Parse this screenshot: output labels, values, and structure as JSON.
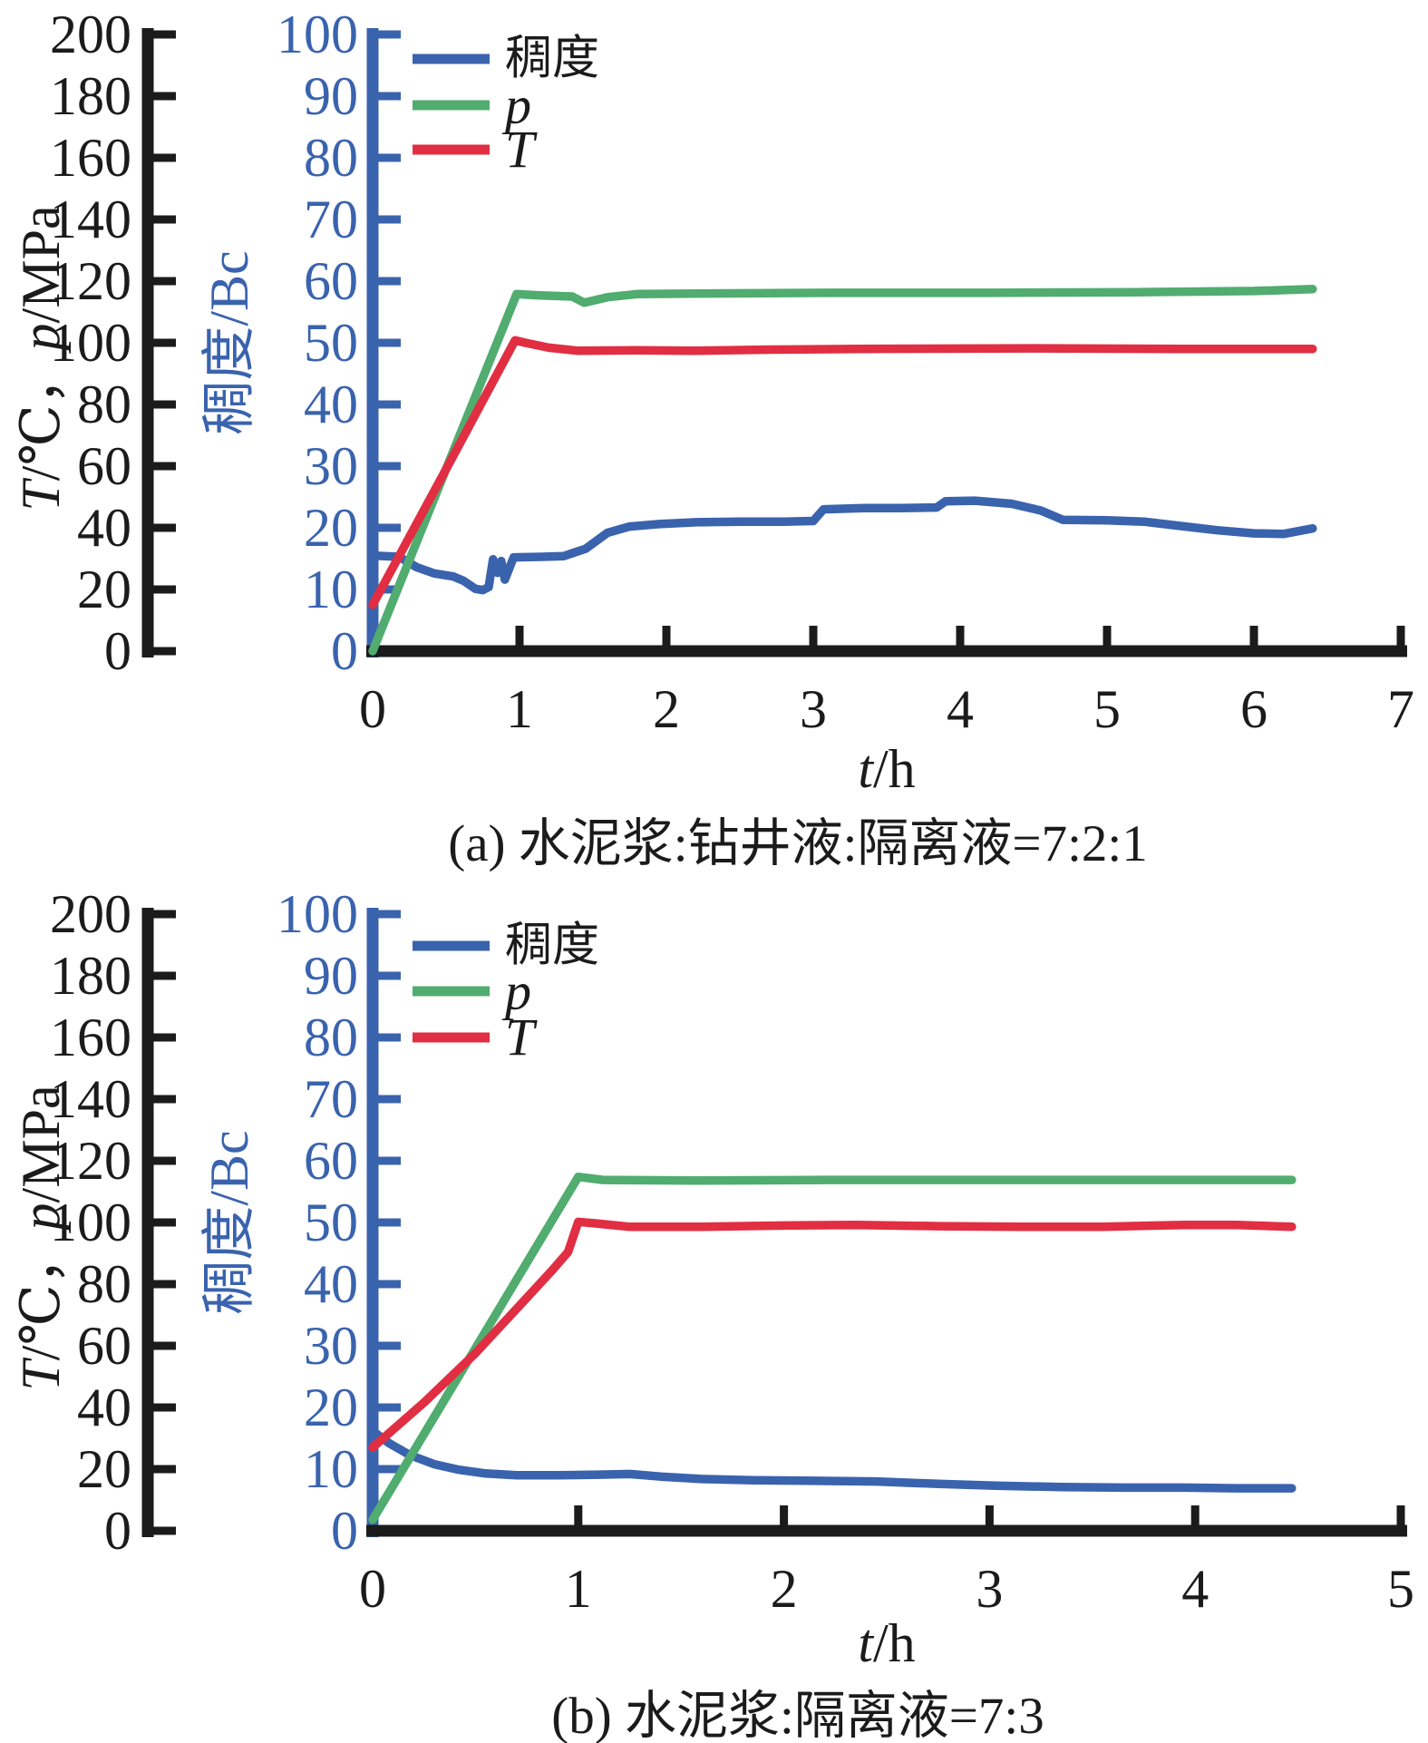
{
  "colors": {
    "consistency": "#3A63AE",
    "pressure": "#50AC6F",
    "temperature": "#E12E42",
    "axis_black": "#1b1b1b",
    "axis_blue": "#3A63AE",
    "background": "#ffffff"
  },
  "chart_data": [
    {
      "type": "line",
      "caption": "(a) 水泥浆:钻井液:隔离液=7:2:1",
      "x_axis": {
        "label_italic": "t",
        "label_rest": "/h",
        "min": 0,
        "max": 7,
        "ticks": [
          0,
          1,
          2,
          3,
          4,
          5,
          6,
          7
        ]
      },
      "left_axis": {
        "label_segments": [
          [
            "T",
            true
          ],
          [
            "/℃，",
            false
          ],
          [
            "p",
            true
          ],
          [
            "/MPa",
            false
          ]
        ],
        "min": 0,
        "max": 200,
        "ticks": [
          0,
          20,
          40,
          60,
          80,
          100,
          120,
          140,
          160,
          180,
          200
        ]
      },
      "right_inner_axis": {
        "label": "稠度/Bc",
        "min": 0,
        "max": 100,
        "ticks": [
          0,
          10,
          20,
          30,
          40,
          50,
          60,
          70,
          80,
          90,
          100
        ]
      },
      "legend": [
        {
          "label": "稠度",
          "italic": false,
          "series": "consistency"
        },
        {
          "label": "p",
          "italic": true,
          "series": "pressure"
        },
        {
          "label": "T",
          "italic": true,
          "series": "temperature"
        }
      ],
      "series": [
        {
          "key": "consistency",
          "name": "稠度",
          "axis": "right",
          "unit": "Bc",
          "points": [
            [
              0,
              15.5
            ],
            [
              0.18,
              15.3
            ],
            [
              0.3,
              13.6
            ],
            [
              0.42,
              12.6
            ],
            [
              0.55,
              12.1
            ],
            [
              0.62,
              11.4
            ],
            [
              0.7,
              10.1
            ],
            [
              0.75,
              9.9
            ],
            [
              0.79,
              10.4
            ],
            [
              0.82,
              14.9
            ],
            [
              0.85,
              12.7
            ],
            [
              0.875,
              14.6
            ],
            [
              0.9,
              11.6
            ],
            [
              0.96,
              15.2
            ],
            [
              1.15,
              15.3
            ],
            [
              1.3,
              15.4
            ],
            [
              1.45,
              16.6
            ],
            [
              1.6,
              19.2
            ],
            [
              1.75,
              20.2
            ],
            [
              1.95,
              20.6
            ],
            [
              2.2,
              20.9
            ],
            [
              2.5,
              21.0
            ],
            [
              2.8,
              21.0
            ],
            [
              3.0,
              21.1
            ],
            [
              3.07,
              23.0
            ],
            [
              3.35,
              23.2
            ],
            [
              3.6,
              23.2
            ],
            [
              3.84,
              23.3
            ],
            [
              3.9,
              24.3
            ],
            [
              4.1,
              24.4
            ],
            [
              4.35,
              23.9
            ],
            [
              4.55,
              22.8
            ],
            [
              4.7,
              21.3
            ],
            [
              5.0,
              21.2
            ],
            [
              5.25,
              21.0
            ],
            [
              5.5,
              20.3
            ],
            [
              5.75,
              19.6
            ],
            [
              6.0,
              19.1
            ],
            [
              6.2,
              19.0
            ],
            [
              6.4,
              19.9
            ]
          ]
        },
        {
          "key": "pressure",
          "name": "p",
          "axis": "left",
          "unit": "MPa",
          "points": [
            [
              0,
              0
            ],
            [
              0.98,
              115.8
            ],
            [
              1.12,
              115.4
            ],
            [
              1.36,
              115.0
            ],
            [
              1.44,
              113.0
            ],
            [
              1.6,
              114.8
            ],
            [
              1.8,
              115.8
            ],
            [
              2.3,
              116.0
            ],
            [
              3.1,
              116.2
            ],
            [
              4.2,
              116.2
            ],
            [
              5.2,
              116.4
            ],
            [
              6.0,
              116.8
            ],
            [
              6.4,
              117.4
            ]
          ]
        },
        {
          "key": "temperature",
          "name": "T",
          "axis": "left",
          "unit": "℃",
          "points": [
            [
              0,
              15
            ],
            [
              0.5,
              59
            ],
            [
              0.97,
              100.8
            ],
            [
              1.04,
              100.0
            ],
            [
              1.2,
              98.4
            ],
            [
              1.4,
              97.4
            ],
            [
              1.8,
              97.6
            ],
            [
              2.2,
              97.4
            ],
            [
              2.7,
              97.8
            ],
            [
              3.3,
              98.0
            ],
            [
              4.5,
              98.2
            ],
            [
              5.5,
              98.0
            ],
            [
              6.4,
              98.0
            ]
          ]
        }
      ]
    },
    {
      "type": "line",
      "caption": "(b) 水泥浆:隔离液=7:3",
      "x_axis": {
        "label_italic": "t",
        "label_rest": "/h",
        "min": 0,
        "max": 5,
        "ticks": [
          0,
          1,
          2,
          3,
          4,
          5
        ]
      },
      "left_axis": {
        "label_segments": [
          [
            "T",
            true
          ],
          [
            "/℃，",
            false
          ],
          [
            "p",
            true
          ],
          [
            "/MPa",
            false
          ]
        ],
        "min": 0,
        "max": 200,
        "ticks": [
          0,
          20,
          40,
          60,
          80,
          100,
          120,
          140,
          160,
          180,
          200
        ]
      },
      "right_inner_axis": {
        "label": "稠度/Bc",
        "min": 0,
        "max": 100,
        "ticks": [
          0,
          10,
          20,
          30,
          40,
          50,
          60,
          70,
          80,
          90,
          100
        ]
      },
      "legend": [
        {
          "label": "稠度",
          "italic": false,
          "series": "consistency"
        },
        {
          "label": "p",
          "italic": true,
          "series": "pressure"
        },
        {
          "label": "T",
          "italic": true,
          "series": "temperature"
        }
      ],
      "series": [
        {
          "key": "consistency",
          "name": "稠度",
          "axis": "right",
          "unit": "Bc",
          "points": [
            [
              0,
              16.2
            ],
            [
              0.08,
              14.2
            ],
            [
              0.18,
              12.3
            ],
            [
              0.3,
              10.8
            ],
            [
              0.42,
              9.9
            ],
            [
              0.55,
              9.3
            ],
            [
              0.7,
              9.0
            ],
            [
              0.9,
              9.0
            ],
            [
              1.1,
              9.1
            ],
            [
              1.25,
              9.2
            ],
            [
              1.4,
              8.8
            ],
            [
              1.6,
              8.4
            ],
            [
              1.85,
              8.2
            ],
            [
              2.15,
              8.1
            ],
            [
              2.45,
              8.0
            ],
            [
              2.75,
              7.6
            ],
            [
              3.05,
              7.3
            ],
            [
              3.35,
              7.1
            ],
            [
              3.65,
              7.0
            ],
            [
              3.95,
              7.0
            ],
            [
              4.2,
              6.9
            ],
            [
              4.47,
              6.9
            ]
          ]
        },
        {
          "key": "pressure",
          "name": "p",
          "axis": "left",
          "unit": "MPa",
          "points": [
            [
              0,
              3.6
            ],
            [
              1.0,
              114.8
            ],
            [
              1.12,
              113.8
            ],
            [
              1.6,
              113.6
            ],
            [
              2.2,
              113.8
            ],
            [
              3.0,
              113.8
            ],
            [
              3.8,
              113.8
            ],
            [
              4.47,
              113.8
            ]
          ]
        },
        {
          "key": "temperature",
          "name": "T",
          "axis": "left",
          "unit": "℃",
          "points": [
            [
              0,
              27
            ],
            [
              0.25,
              41.6
            ],
            [
              0.5,
              57.6
            ],
            [
              0.75,
              75.6
            ],
            [
              0.88,
              85
            ],
            [
              0.95,
              90.4
            ],
            [
              1.0,
              100.2
            ],
            [
              1.1,
              99.6
            ],
            [
              1.25,
              98.6
            ],
            [
              1.6,
              98.6
            ],
            [
              2.0,
              99.0
            ],
            [
              2.35,
              99.2
            ],
            [
              2.75,
              98.8
            ],
            [
              3.15,
              98.6
            ],
            [
              3.55,
              98.6
            ],
            [
              3.95,
              99.2
            ],
            [
              4.2,
              99.2
            ],
            [
              4.47,
              98.6
            ]
          ]
        }
      ]
    }
  ]
}
